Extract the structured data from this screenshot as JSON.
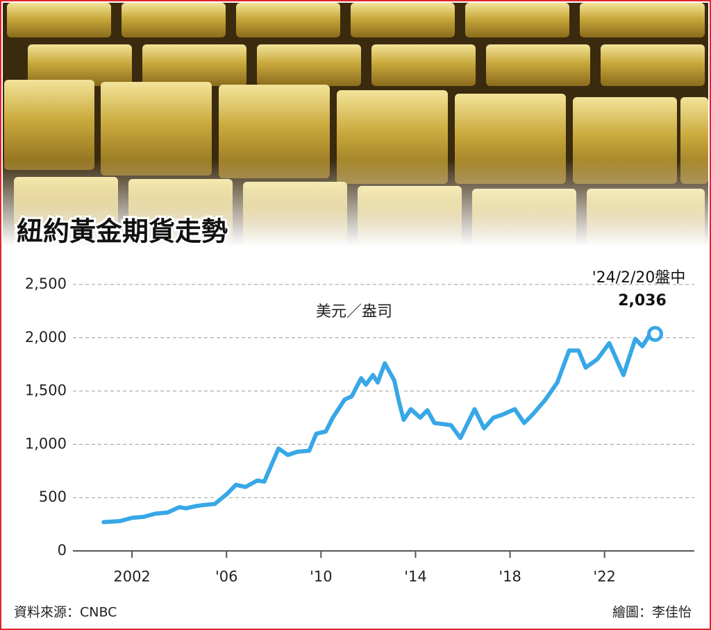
{
  "chart_data": {
    "type": "line",
    "title": "紐約黃金期貨走勢",
    "unit_label": "美元／盎司",
    "x": [
      2000.8,
      2001.5,
      2002,
      2002.5,
      2003,
      2003.5,
      2004,
      2004.3,
      2004.7,
      2005,
      2005.5,
      2006,
      2006.4,
      2006.8,
      2007.3,
      2007.6,
      2008.2,
      2008.6,
      2009,
      2009.5,
      2009.8,
      2010.2,
      2010.5,
      2011,
      2011.3,
      2011.7,
      2011.9,
      2012.2,
      2012.4,
      2012.7,
      2013.1,
      2013.3,
      2013.5,
      2013.8,
      2014.2,
      2014.5,
      2014.8,
      2015.5,
      2015.9,
      2016.5,
      2016.9,
      2017.3,
      2017.7,
      2018.2,
      2018.6,
      2019,
      2019.5,
      2020,
      2020.5,
      2020.9,
      2021.2,
      2021.7,
      2022.2,
      2022.8,
      2023.3,
      2023.6,
      2024.0,
      2024.14
    ],
    "series": [
      {
        "color": "#38a7e6",
        "values": [
          270,
          280,
          310,
          320,
          350,
          360,
          410,
          400,
          420,
          430,
          440,
          530,
          620,
          600,
          660,
          650,
          960,
          900,
          930,
          940,
          1100,
          1120,
          1250,
          1420,
          1450,
          1620,
          1560,
          1650,
          1580,
          1760,
          1600,
          1400,
          1230,
          1330,
          1250,
          1320,
          1200,
          1180,
          1060,
          1330,
          1150,
          1250,
          1280,
          1330,
          1200,
          1290,
          1420,
          1580,
          1880,
          1880,
          1720,
          1800,
          1950,
          1650,
          1990,
          1920,
          2060,
          2036
        ]
      }
    ],
    "end_annotation": "'24/2/20盤中",
    "end_value_label": "2,036",
    "xlim": [
      1999.5,
      2025.8
    ],
    "ylim": [
      0,
      2500
    ],
    "xticks": [
      2002,
      {
        "value": 2006,
        "label": "'06"
      },
      {
        "value": 2010,
        "label": "'10"
      },
      {
        "value": 2014,
        "label": "'14"
      },
      {
        "value": 2018,
        "label": "'18"
      },
      {
        "value": 2022,
        "label": "'22"
      }
    ],
    "yticks": [
      0,
      500,
      {
        "value": 1000,
        "label": "1,000"
      },
      {
        "value": 1500,
        "label": "1,500"
      },
      {
        "value": 2000,
        "label": "2,000"
      },
      {
        "value": 2500,
        "label": "2,500"
      }
    ],
    "grid": true,
    "source": "資料來源：CNBC",
    "credit": "繪圖：李佳怡"
  }
}
